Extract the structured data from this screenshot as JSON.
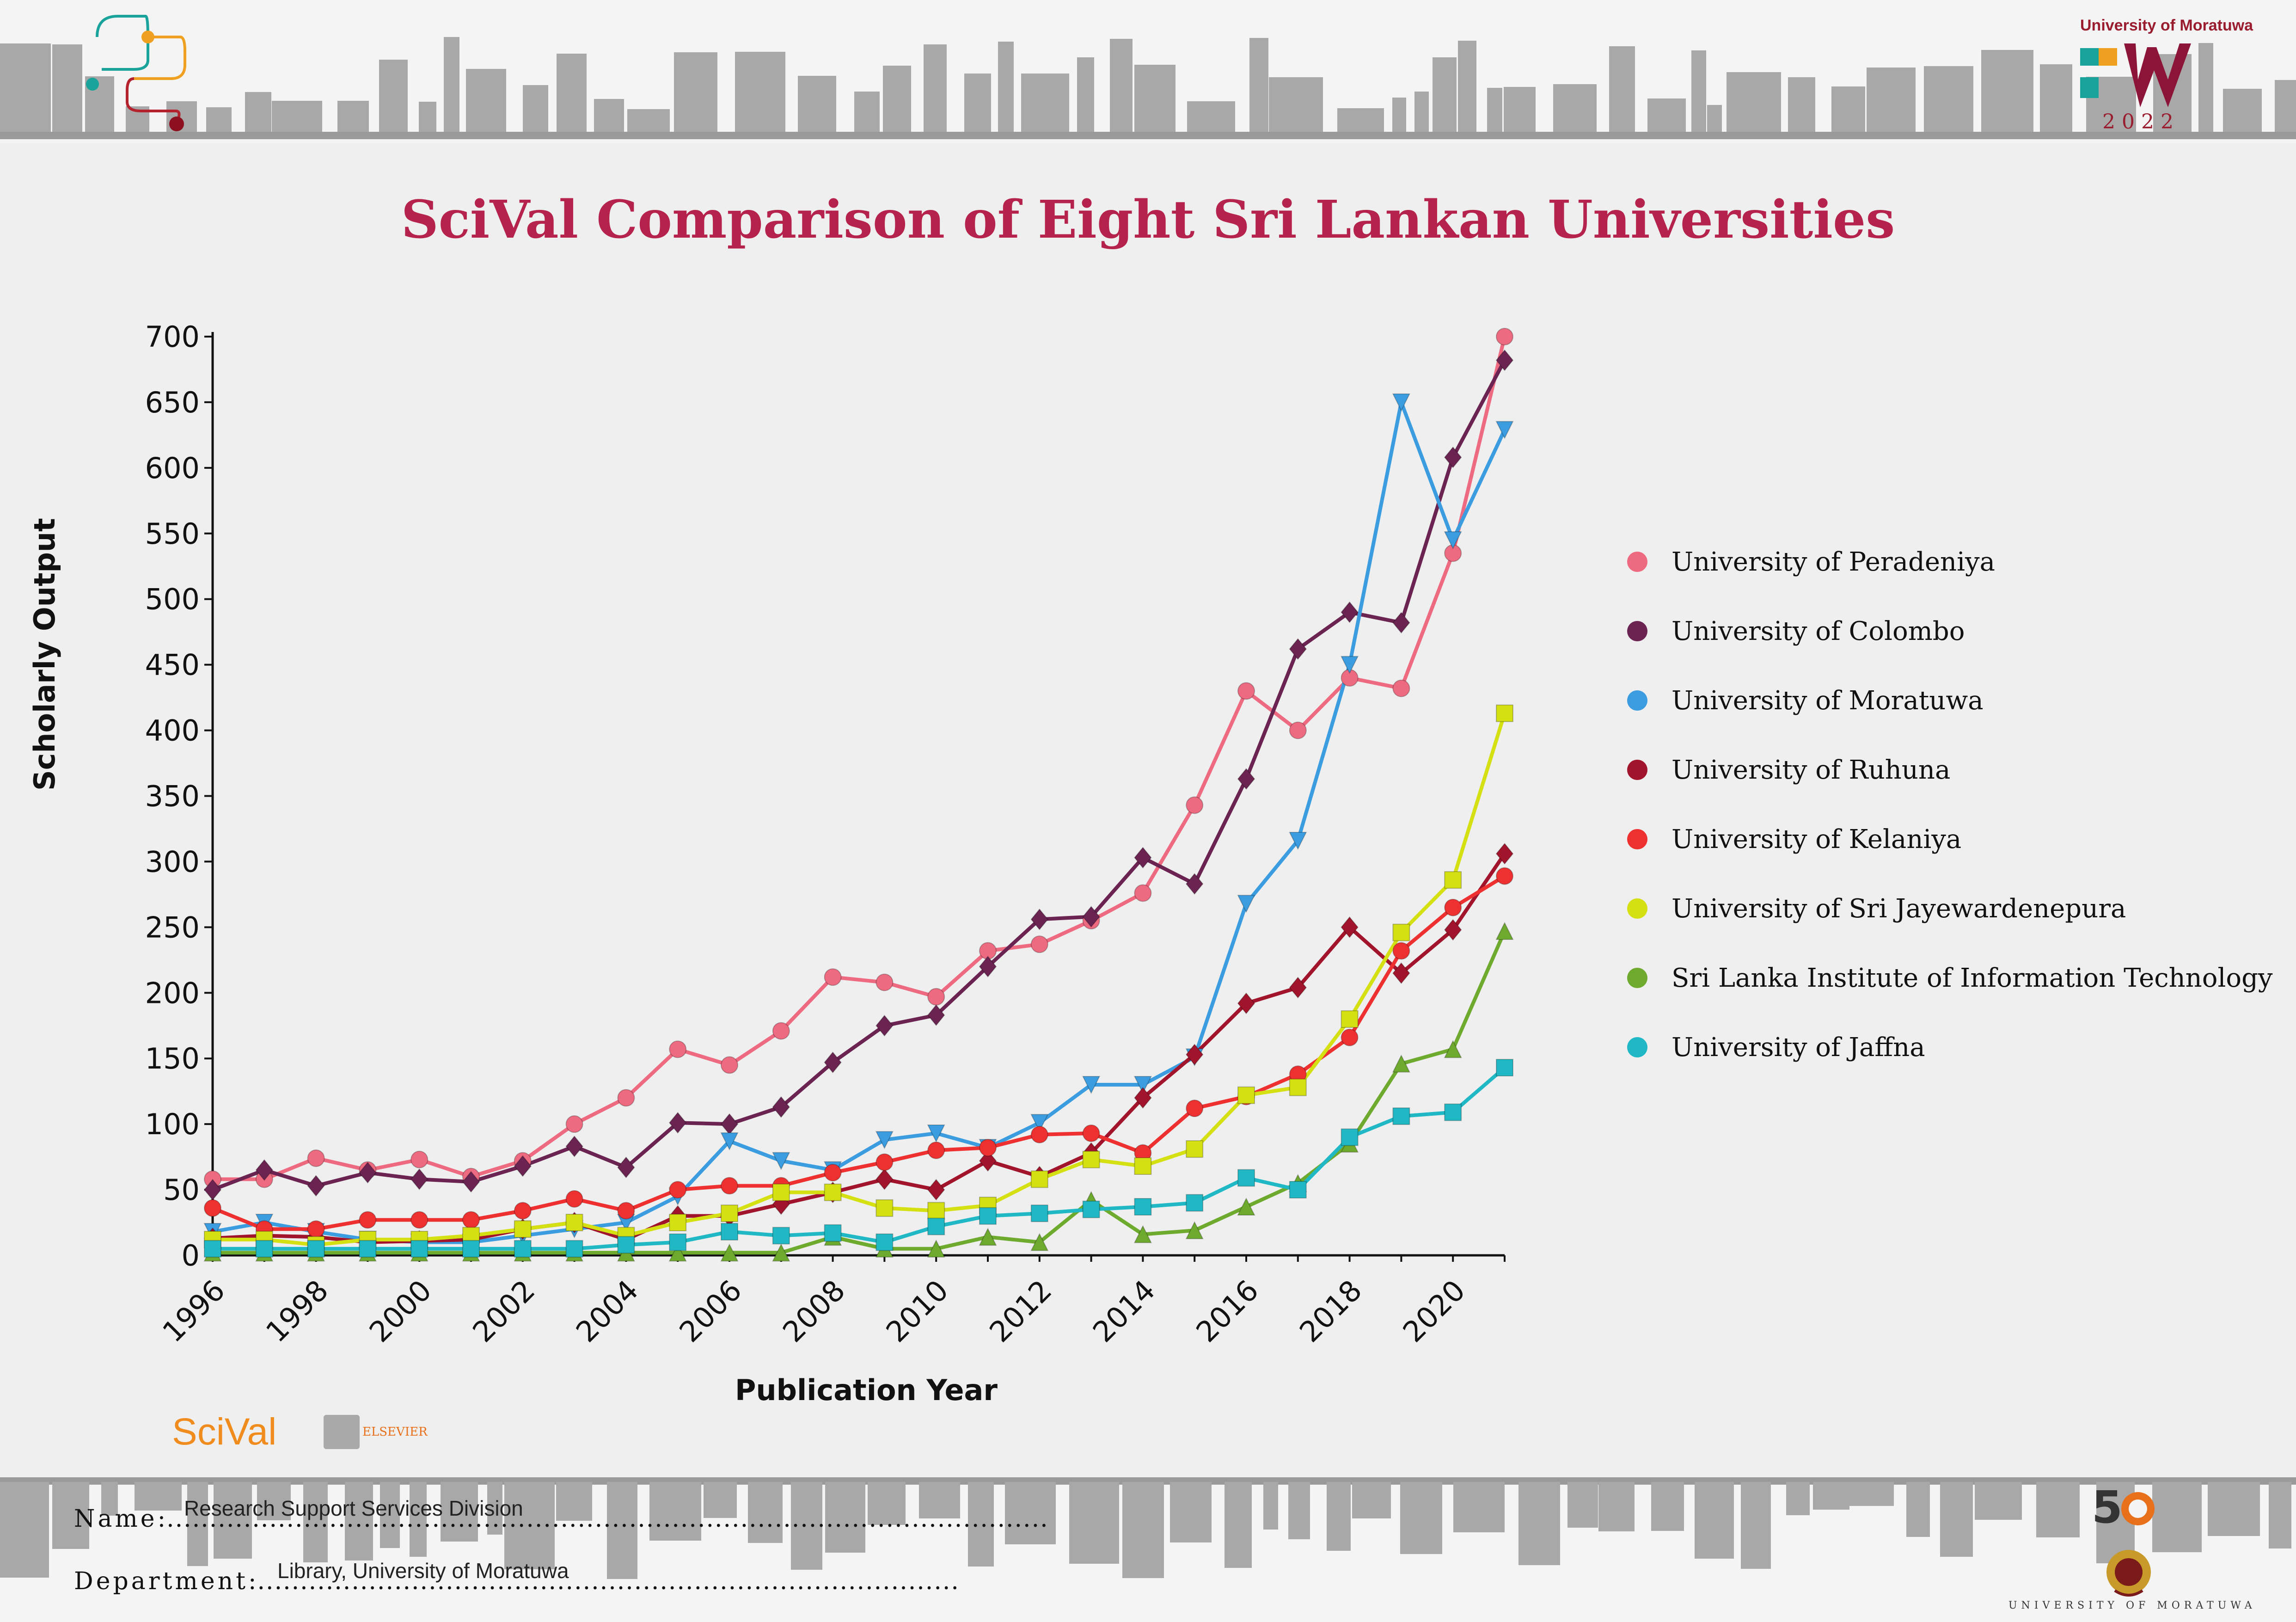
{
  "header": {
    "university_small": "University of Moratuwa",
    "logo_year": "2022",
    "logo_icon": "circuit-logo-icon",
    "anniversary_logo": "fifty-w-logo-icon"
  },
  "footer": {
    "name_label": "Name",
    "name_value": "Research Support Services Division",
    "department_label": "Department",
    "department_value": "Library, University of Moratuwa",
    "university_text": "UNIVERSITY OF MORATUWA",
    "scival_logo": "SciVal",
    "elsevier_logo": "ELSEVIER"
  },
  "chart_data": {
    "type": "line",
    "title": "SciVal Comparison of Eight Sri Lankan Universities",
    "xlabel": "Publication Year",
    "ylabel": "Scholarly Output",
    "ylim": [
      0,
      700
    ],
    "xlim": [
      1996,
      2021
    ],
    "x": [
      1996,
      1997,
      1998,
      1999,
      2000,
      2001,
      2002,
      2003,
      2004,
      2005,
      2006,
      2007,
      2008,
      2009,
      2010,
      2011,
      2012,
      2013,
      2014,
      2015,
      2016,
      2017,
      2018,
      2019,
      2020,
      2021
    ],
    "xticks": [
      "1996",
      "1998",
      "2000",
      "2002",
      "2004",
      "2006",
      "2008",
      "2010",
      "2012",
      "2014",
      "2016",
      "2018",
      "2020"
    ],
    "yticks": [
      "0",
      "50",
      "100",
      "150",
      "200",
      "250",
      "300",
      "350",
      "400",
      "450",
      "500",
      "550",
      "600",
      "650",
      "700"
    ],
    "legend_position": "right",
    "series": [
      {
        "name": "University of Peradeniya",
        "color": "#ee6a80",
        "marker": "circle",
        "values": [
          58,
          58,
          74,
          65,
          73,
          60,
          72,
          100,
          120,
          157,
          145,
          171,
          212,
          208,
          197,
          232,
          237,
          255,
          276,
          343,
          430,
          400,
          440,
          432,
          535,
          700
        ]
      },
      {
        "name": "University of Colombo",
        "color": "#6b2452",
        "marker": "diamond",
        "values": [
          50,
          65,
          53,
          63,
          58,
          56,
          68,
          83,
          67,
          101,
          100,
          113,
          147,
          175,
          183,
          220,
          256,
          258,
          303,
          283,
          363,
          462,
          490,
          482,
          608,
          682
        ]
      },
      {
        "name": "University of Moratuwa",
        "color": "#3b9de0",
        "marker": "triangle-down",
        "values": [
          18,
          25,
          18,
          12,
          10,
          10,
          15,
          20,
          25,
          45,
          87,
          72,
          65,
          88,
          93,
          82,
          101,
          130,
          130,
          151,
          268,
          316,
          450,
          650,
          545,
          629
        ]
      },
      {
        "name": "University of Ruhuna",
        "color": "#a1142b",
        "marker": "diamond",
        "values": [
          13,
          15,
          14,
          10,
          11,
          12,
          20,
          25,
          12,
          30,
          30,
          39,
          48,
          58,
          50,
          72,
          60,
          78,
          120,
          153,
          192,
          204,
          250,
          215,
          248,
          306
        ]
      },
      {
        "name": "University of Kelaniya",
        "color": "#ee3030",
        "marker": "circle",
        "values": [
          36,
          20,
          20,
          27,
          27,
          27,
          34,
          43,
          34,
          50,
          53,
          53,
          63,
          71,
          80,
          82,
          92,
          93,
          78,
          112,
          121,
          138,
          166,
          232,
          265,
          289
        ]
      },
      {
        "name": "University of Sri Jayewardenepura",
        "color": "#d4e012",
        "marker": "square",
        "values": [
          12,
          12,
          8,
          12,
          12,
          15,
          20,
          25,
          15,
          25,
          32,
          48,
          48,
          36,
          34,
          38,
          58,
          73,
          68,
          81,
          122,
          128,
          180,
          246,
          286,
          413
        ]
      },
      {
        "name": "Sri Lanka Institute of Information Technology",
        "color": "#6eaa2e",
        "marker": "triangle-up",
        "values": [
          2,
          2,
          2,
          2,
          2,
          2,
          2,
          2,
          2,
          2,
          2,
          2,
          14,
          5,
          5,
          14,
          10,
          42,
          16,
          19,
          37,
          55,
          85,
          146,
          157,
          247
        ]
      },
      {
        "name": "University of Jaffna",
        "color": "#1fb8c4",
        "marker": "square",
        "values": [
          5,
          5,
          5,
          5,
          5,
          5,
          5,
          5,
          8,
          10,
          18,
          15,
          17,
          10,
          22,
          30,
          32,
          35,
          37,
          40,
          59,
          50,
          90,
          106,
          109,
          143
        ]
      }
    ]
  }
}
